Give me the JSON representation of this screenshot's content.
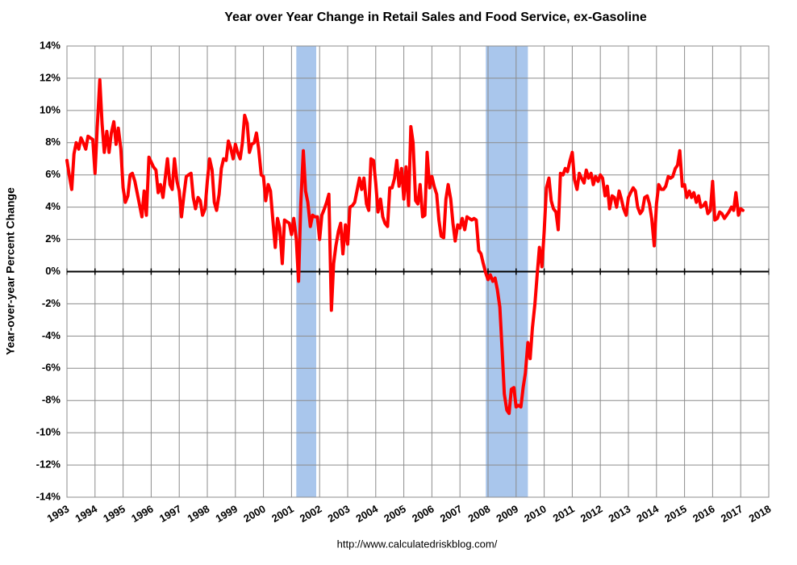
{
  "chart_data": {
    "type": "line",
    "title": "Year over Year Change in Retail Sales and Food Service, ex-Gasoline",
    "y_label": "Year-over-year Percent Change",
    "source": "http://www.calculatedriskblog.com/",
    "color": "#ff0000",
    "shade_color": "#a9c6ec",
    "shaded_periods": [
      [
        2001.17,
        2001.88
      ],
      [
        2007.92,
        2009.42
      ]
    ],
    "grid": true,
    "xlim": [
      1993,
      2018
    ],
    "xticks": [
      1993,
      1994,
      1995,
      1996,
      1997,
      1998,
      1999,
      2000,
      2001,
      2002,
      2003,
      2004,
      2005,
      2006,
      2007,
      2008,
      2009,
      2010,
      2011,
      2012,
      2013,
      2014,
      2015,
      2016,
      2017,
      2018
    ],
    "ylim": [
      -14,
      14
    ],
    "yticks": [
      {
        "value": -14,
        "label": "-14%"
      },
      {
        "value": -12,
        "label": "-12%"
      },
      {
        "value": -10,
        "label": "-10%"
      },
      {
        "value": -8,
        "label": "-8%"
      },
      {
        "value": -6,
        "label": "-6%"
      },
      {
        "value": -4,
        "label": "-4%"
      },
      {
        "value": -2,
        "label": "-2%"
      },
      {
        "value": 0,
        "label": "0%"
      },
      {
        "value": 2,
        "label": "2%"
      },
      {
        "value": 4,
        "label": "4%"
      },
      {
        "value": 6,
        "label": "6%"
      },
      {
        "value": 8,
        "label": "8%"
      },
      {
        "value": 10,
        "label": "10%"
      },
      {
        "value": 12,
        "label": "12%"
      },
      {
        "value": 14,
        "label": "14%"
      }
    ],
    "x": [
      1993,
      1993.08,
      1993.17,
      1993.25,
      1993.33,
      1993.42,
      1993.5,
      1993.58,
      1993.67,
      1993.75,
      1993.83,
      1993.92,
      1994,
      1994.08,
      1994.17,
      1994.25,
      1994.33,
      1994.42,
      1994.5,
      1994.58,
      1994.67,
      1994.75,
      1994.83,
      1994.92,
      1995,
      1995.08,
      1995.17,
      1995.25,
      1995.33,
      1995.42,
      1995.5,
      1995.58,
      1995.67,
      1995.75,
      1995.83,
      1995.92,
      1996,
      1996.08,
      1996.17,
      1996.25,
      1996.33,
      1996.42,
      1996.5,
      1996.58,
      1996.67,
      1996.75,
      1996.83,
      1996.92,
      1997,
      1997.08,
      1997.17,
      1997.25,
      1997.33,
      1997.42,
      1997.5,
      1997.58,
      1997.67,
      1997.75,
      1997.83,
      1997.92,
      1998,
      1998.08,
      1998.17,
      1998.25,
      1998.33,
      1998.42,
      1998.5,
      1998.58,
      1998.67,
      1998.75,
      1998.83,
      1998.92,
      1999,
      1999.08,
      1999.17,
      1999.25,
      1999.33,
      1999.42,
      1999.5,
      1999.58,
      1999.67,
      1999.75,
      1999.83,
      1999.92,
      2000,
      2000.08,
      2000.17,
      2000.25,
      2000.33,
      2000.42,
      2000.5,
      2000.58,
      2000.67,
      2000.75,
      2000.83,
      2000.92,
      2001,
      2001.08,
      2001.17,
      2001.25,
      2001.33,
      2001.42,
      2001.5,
      2001.58,
      2001.67,
      2001.75,
      2001.83,
      2001.92,
      2002,
      2002.08,
      2002.17,
      2002.25,
      2002.33,
      2002.42,
      2002.5,
      2002.58,
      2002.67,
      2002.75,
      2002.83,
      2002.92,
      2003,
      2003.08,
      2003.17,
      2003.25,
      2003.33,
      2003.42,
      2003.5,
      2003.58,
      2003.67,
      2003.75,
      2003.83,
      2003.92,
      2004,
      2004.08,
      2004.17,
      2004.25,
      2004.33,
      2004.42,
      2004.5,
      2004.58,
      2004.67,
      2004.75,
      2004.83,
      2004.92,
      2005,
      2005.08,
      2005.17,
      2005.25,
      2005.33,
      2005.42,
      2005.5,
      2005.58,
      2005.67,
      2005.75,
      2005.83,
      2005.92,
      2006,
      2006.08,
      2006.17,
      2006.25,
      2006.33,
      2006.42,
      2006.5,
      2006.58,
      2006.67,
      2006.75,
      2006.83,
      2006.92,
      2007,
      2007.08,
      2007.17,
      2007.25,
      2007.33,
      2007.42,
      2007.5,
      2007.58,
      2007.67,
      2007.75,
      2007.83,
      2007.92,
      2008,
      2008.08,
      2008.17,
      2008.25,
      2008.33,
      2008.42,
      2008.5,
      2008.58,
      2008.67,
      2008.75,
      2008.83,
      2008.92,
      2009,
      2009.08,
      2009.17,
      2009.25,
      2009.33,
      2009.42,
      2009.5,
      2009.58,
      2009.67,
      2009.75,
      2009.83,
      2009.92,
      2010,
      2010.08,
      2010.17,
      2010.25,
      2010.33,
      2010.42,
      2010.5,
      2010.58,
      2010.67,
      2010.75,
      2010.83,
      2010.92,
      2011,
      2011.08,
      2011.17,
      2011.25,
      2011.33,
      2011.42,
      2011.5,
      2011.58,
      2011.67,
      2011.75,
      2011.83,
      2011.92,
      2012,
      2012.08,
      2012.17,
      2012.25,
      2012.33,
      2012.42,
      2012.5,
      2012.58,
      2012.67,
      2012.75,
      2012.83,
      2012.92,
      2013,
      2013.08,
      2013.17,
      2013.25,
      2013.33,
      2013.42,
      2013.5,
      2013.58,
      2013.67,
      2013.75,
      2013.83,
      2013.92,
      2014,
      2014.08,
      2014.17,
      2014.25,
      2014.33,
      2014.42,
      2014.5,
      2014.58,
      2014.67,
      2014.75,
      2014.83,
      2014.92,
      2015,
      2015.08,
      2015.17,
      2015.25,
      2015.33,
      2015.42,
      2015.5,
      2015.58,
      2015.67,
      2015.75,
      2015.83,
      2015.92,
      2016,
      2016.08,
      2016.17,
      2016.25,
      2016.33,
      2016.42,
      2016.5,
      2016.58,
      2016.67,
      2016.75,
      2016.83,
      2016.92,
      2017,
      2017.08
    ],
    "values": [
      6.9,
      6.0,
      5.1,
      7.3,
      8.0,
      7.6,
      8.3,
      8.0,
      7.6,
      8.4,
      8.3,
      8.2,
      6.1,
      9.0,
      11.9,
      9.2,
      7.4,
      8.7,
      7.4,
      8.6,
      9.3,
      7.9,
      8.9,
      7.6,
      5.2,
      4.3,
      4.7,
      6.0,
      6.1,
      5.6,
      4.9,
      4.2,
      3.4,
      5.0,
      3.5,
      7.1,
      6.8,
      6.5,
      6.3,
      4.9,
      5.4,
      4.6,
      5.8,
      7.0,
      5.4,
      5.1,
      7.0,
      5.6,
      5.0,
      3.4,
      4.8,
      5.9,
      6.0,
      6.1,
      4.6,
      3.9,
      4.6,
      4.4,
      3.5,
      3.9,
      5.6,
      7.0,
      6.3,
      4.3,
      3.8,
      4.8,
      6.4,
      7.0,
      6.9,
      8.1,
      7.7,
      7.0,
      7.9,
      7.4,
      7.0,
      8.0,
      9.7,
      9.2,
      7.4,
      7.9,
      8.0,
      8.6,
      7.6,
      6.0,
      5.9,
      4.4,
      5.4,
      5.0,
      3.3,
      1.5,
      3.3,
      2.7,
      0.5,
      3.2,
      3.1,
      3.0,
      2.3,
      3.3,
      2.0,
      -0.6,
      4.2,
      7.5,
      5.0,
      4.3,
      2.8,
      3.5,
      3.4,
      3.4,
      2.0,
      3.5,
      3.9,
      4.3,
      4.8,
      -2.4,
      0.5,
      1.6,
      2.5,
      3.0,
      1.1,
      2.9,
      1.7,
      4.0,
      4.1,
      4.3,
      5.0,
      5.8,
      5.1,
      5.8,
      4.2,
      3.8,
      7.0,
      6.9,
      5.5,
      3.7,
      4.5,
      3.4,
      3.0,
      2.8,
      5.2,
      5.2,
      5.8,
      6.9,
      5.3,
      6.4,
      4.5,
      6.5,
      4.1,
      9.0,
      8.0,
      4.4,
      4.2,
      5.4,
      3.4,
      3.5,
      7.4,
      5.2,
      5.9,
      5.3,
      4.8,
      3.2,
      2.2,
      2.1,
      4.5,
      5.4,
      4.5,
      3.0,
      1.9,
      2.9,
      2.7,
      3.3,
      2.6,
      3.4,
      3.3,
      3.2,
      3.3,
      3.2,
      1.3,
      1.1,
      0.5,
      -0.1,
      -0.5,
      -0.2,
      -0.6,
      -0.4,
      -1.1,
      -2.2,
      -4.8,
      -7.6,
      -8.6,
      -8.8,
      -7.3,
      -7.2,
      -8.4,
      -8.3,
      -8.4,
      -7.2,
      -6.3,
      -4.4,
      -5.4,
      -3.5,
      -2.0,
      -0.2,
      1.5,
      0.3,
      2.5,
      5.2,
      5.8,
      4.4,
      3.9,
      3.7,
      2.6,
      6.1,
      6.0,
      6.4,
      6.2,
      6.9,
      7.4,
      5.7,
      5.1,
      6.1,
      5.8,
      5.5,
      6.3,
      5.8,
      6.1,
      5.4,
      5.9,
      5.6,
      6.0,
      5.8,
      4.7,
      5.3,
      3.9,
      4.7,
      4.6,
      4.0,
      5.0,
      4.5,
      3.9,
      3.5,
      4.6,
      4.9,
      5.2,
      5.0,
      4.0,
      3.6,
      3.8,
      4.6,
      4.7,
      4.2,
      3.3,
      1.6,
      4.2,
      5.4,
      5.1,
      5.1,
      5.3,
      5.9,
      5.8,
      5.9,
      6.4,
      6.6,
      7.5,
      5.3,
      5.4,
      4.6,
      5.0,
      4.6,
      4.9,
      4.3,
      4.7,
      4.0,
      4.1,
      4.3,
      3.6,
      3.8,
      5.6,
      3.2,
      3.3,
      3.7,
      3.6,
      3.3,
      3.5,
      3.7,
      4.0,
      3.8,
      4.9,
      3.5,
      3.9,
      3.8
    ]
  }
}
